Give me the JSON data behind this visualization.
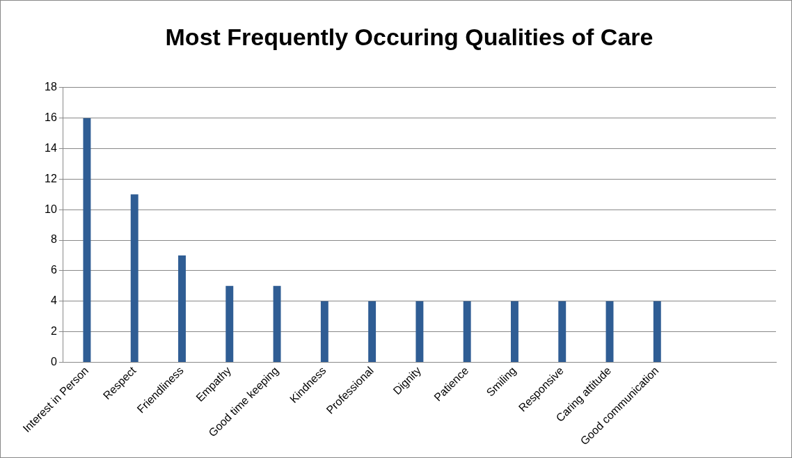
{
  "chart_data": {
    "type": "bar",
    "title": "Most Frequently Occuring Qualities of Care",
    "categories": [
      "Interest in Person",
      "Respect",
      "Friendliness",
      "Empathy",
      "Good time keeping",
      "Kindness",
      "Professional",
      "Dignity",
      "Patience",
      "Smiling",
      "Responsive",
      "Caring attitude",
      "Good communication",
      null,
      null
    ],
    "values": [
      16,
      11,
      7,
      5,
      5,
      4,
      4,
      4,
      4,
      4,
      4,
      4,
      4,
      null,
      null
    ],
    "color": "#2f5d94",
    "ylim": [
      0,
      18
    ],
    "yticks": [
      0,
      2,
      4,
      6,
      8,
      10,
      12,
      14,
      16,
      18
    ],
    "grid": "y",
    "legend": false
  }
}
